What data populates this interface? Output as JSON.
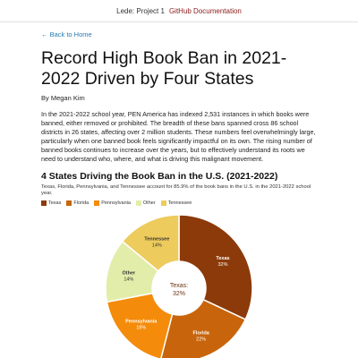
{
  "nav": {
    "site_name": "Lede: Project 1",
    "link_label": "GitHub Documentation"
  },
  "back_link": "← Back to Home",
  "article": {
    "title": "Record High Book Ban in 2021-2022 Driven by Four States",
    "byline": "By Megan Kim",
    "intro": "In the 2021-2022 school year, PEN America has indexed 2,531 instances in which books were banned, either removed or prohibited. The breadth of these bans spanned cross 86 school districts in 26 states, affecting over 2 million students. These numbers feel overwhelmingly large, particularly when one banned book feels significantly impactful on its own. The rising number of banned books continues to increase over the years, but to effectively understand its roots we need to understand who, where, and what is driving this malignant movement."
  },
  "chart_data": {
    "type": "pie",
    "title": "4 States Driving the Book Ban in the U.S. (2021-2022)",
    "subtitle": "Texas, Florida, Pennsylvania, and Tennessee account for 85.9% of the book bans in the U.S. in the 2021-2022 school year.",
    "legend_position": "top-left",
    "categories": [
      "Texas",
      "Florida",
      "Pennsylvania",
      "Other",
      "Tennessee"
    ],
    "values": [
      32,
      22,
      18,
      14,
      14
    ],
    "value_labels": [
      "32%",
      "22%",
      "18%",
      "14%",
      "14%"
    ],
    "colors": [
      "#8c3a0a",
      "#c8650c",
      "#f48b0b",
      "#e2edaa",
      "#edcb5c"
    ],
    "center_label": "Texas:",
    "center_value": "32%"
  }
}
